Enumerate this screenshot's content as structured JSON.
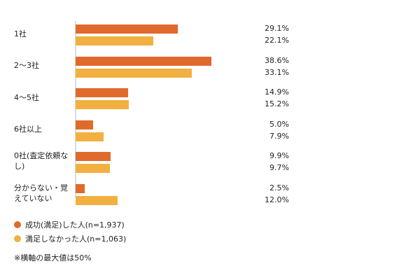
{
  "chart_data": {
    "type": "bar",
    "orientation": "horizontal",
    "categories": [
      "1社",
      "2〜3社",
      "4〜5社",
      "6社以上",
      "0社(査定依頼なし)",
      "分からない・覚えていない"
    ],
    "series": [
      {
        "name": "成功(満足)した人(n=1,937)",
        "color": "#e06a2c",
        "values": [
          29.1,
          38.6,
          14.9,
          5.0,
          9.9,
          2.5
        ],
        "labels": [
          "29.1%",
          "38.6%",
          "14.9%",
          "5.0%",
          "9.9%",
          "2.5%"
        ]
      },
      {
        "name": "満足しなかった人(n=1,063)",
        "color": "#f2b041",
        "values": [
          22.1,
          33.1,
          15.2,
          7.9,
          9.7,
          12.0
        ],
        "labels": [
          "22.1%",
          "33.1%",
          "15.2%",
          "7.9%",
          "9.7%",
          "12.0%"
        ]
      }
    ],
    "xlim": [
      0,
      50
    ],
    "grid": false,
    "legend": "bottom-left",
    "note": "※横軸の最大値は50%"
  }
}
